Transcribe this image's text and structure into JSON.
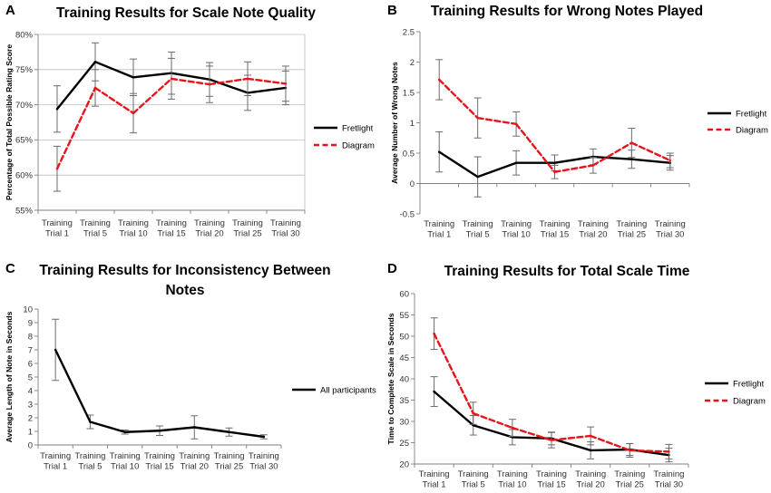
{
  "chart_data": [
    {
      "id": "A",
      "panel_label": "A",
      "type": "line",
      "title": "Training Results for Scale Note Quality",
      "title_lines": [
        "Training Results for Scale Note Quality"
      ],
      "ylabel": "Percentage of Total Possible Rating Score",
      "xlabel": "",
      "categories": [
        [
          "Training",
          "Trial 1"
        ],
        [
          "Training",
          "Trial 5"
        ],
        [
          "Training",
          "Trial 10"
        ],
        [
          "Training",
          "Trial 15"
        ],
        [
          "Training",
          "Trial 20"
        ],
        [
          "Training",
          "Trial 25"
        ],
        [
          "Training",
          "Trial 30"
        ]
      ],
      "ylim": [
        55,
        80
      ],
      "yticks": [
        55,
        60,
        65,
        70,
        75,
        80
      ],
      "ytick_labels": [
        "55%",
        "60%",
        "65%",
        "70%",
        "75%",
        "80%"
      ],
      "gridlines": true,
      "series": [
        {
          "name": "Fretlight",
          "color": "#000000",
          "dash": false,
          "values": [
            69.4,
            76.1,
            73.9,
            74.5,
            73.6,
            71.7,
            72.4
          ],
          "errors": [
            3.3,
            2.7,
            2.6,
            3.0,
            2.4,
            2.5,
            2.4
          ]
        },
        {
          "name": "Diagram",
          "color": "#e8141b",
          "dash": true,
          "values": [
            60.9,
            72.4,
            68.8,
            73.7,
            72.9,
            73.7,
            73.0
          ],
          "errors": [
            3.2,
            2.6,
            2.8,
            2.9,
            2.6,
            2.4,
            2.5
          ]
        }
      ],
      "legend": {
        "position": "right",
        "entries": [
          "Fretlight",
          "Diagram"
        ]
      }
    },
    {
      "id": "B",
      "panel_label": "B",
      "type": "line",
      "title": "Training Results for Wrong Notes Played",
      "title_lines": [
        "Training Results for Wrong Notes Played"
      ],
      "ylabel": "Average Number of Wrong Notes",
      "xlabel": "",
      "categories": [
        [
          "Training",
          "Trial 1"
        ],
        [
          "Training",
          "Trial 5"
        ],
        [
          "Training",
          "Trial 10"
        ],
        [
          "Training",
          "Trial 15"
        ],
        [
          "Training",
          "Trial 20"
        ],
        [
          "Training",
          "Trial 25"
        ],
        [
          "Training",
          "Trial 30"
        ]
      ],
      "ylim": [
        -0.5,
        2.5
      ],
      "yticks": [
        -0.5,
        0,
        0.5,
        1,
        1.5,
        2,
        2.5
      ],
      "ytick_labels": [
        "-0.5",
        "0",
        "0.5",
        "1",
        "1.5",
        "2",
        "2.5"
      ],
      "gridlines": false,
      "series": [
        {
          "name": "Fretlight",
          "color": "#000000",
          "dash": false,
          "values": [
            0.52,
            0.11,
            0.34,
            0.34,
            0.44,
            0.4,
            0.34
          ],
          "errors": [
            0.33,
            0.33,
            0.2,
            0.13,
            0.13,
            0.15,
            0.12
          ]
        },
        {
          "name": "Diagram",
          "color": "#e8141b",
          "dash": true,
          "values": [
            1.71,
            1.08,
            0.98,
            0.19,
            0.3,
            0.67,
            0.38
          ],
          "errors": [
            0.33,
            0.33,
            0.2,
            0.11,
            0.13,
            0.24,
            0.12
          ]
        }
      ],
      "legend": {
        "position": "right",
        "entries": [
          "Fretlight",
          "Diagram"
        ]
      }
    },
    {
      "id": "C",
      "panel_label": "C",
      "type": "line",
      "title": "Training Results for Inconsistency Between Notes",
      "title_lines": [
        "Training Results for Inconsistency Between",
        "Notes"
      ],
      "ylabel": "Average Length of Note in Seconds",
      "xlabel": "",
      "categories": [
        [
          "Training",
          "Trial 1"
        ],
        [
          "Training",
          "Trial 5"
        ],
        [
          "Training",
          "Trial 10"
        ],
        [
          "Training",
          "Trial 15"
        ],
        [
          "Training",
          "Trial 20"
        ],
        [
          "Training",
          "Trial 25"
        ],
        [
          "Training",
          "Trial 30"
        ]
      ],
      "ylim": [
        0,
        10
      ],
      "yticks": [
        0,
        1,
        2,
        3,
        4,
        5,
        6,
        7,
        8,
        9,
        10
      ],
      "ytick_labels": [
        "0",
        "1",
        "2",
        "3",
        "4",
        "5",
        "6",
        "7",
        "8",
        "9",
        "10"
      ],
      "gridlines": false,
      "series": [
        {
          "name": "All participants",
          "color": "#000000",
          "dash": false,
          "values": [
            7.0,
            1.7,
            0.95,
            1.05,
            1.3,
            0.95,
            0.6
          ],
          "errors": [
            2.25,
            0.5,
            0.15,
            0.35,
            0.85,
            0.3,
            0.15
          ]
        }
      ],
      "legend": {
        "position": "right",
        "entries": [
          "All participants"
        ]
      }
    },
    {
      "id": "D",
      "panel_label": "D",
      "type": "line",
      "title": "Training Results for Total Scale Time",
      "title_lines": [
        "Training Results for Total Scale Time"
      ],
      "ylabel": "Time to Complete Scale in Seconds",
      "xlabel": "",
      "categories": [
        [
          "Training",
          "Trial 1"
        ],
        [
          "Training",
          "Trial 5"
        ],
        [
          "Training",
          "Trial 10"
        ],
        [
          "Training",
          "Trial 15"
        ],
        [
          "Training",
          "Trial 20"
        ],
        [
          "Training",
          "Trial 25"
        ],
        [
          "Training",
          "Trial 30"
        ]
      ],
      "ylim": [
        20,
        60
      ],
      "yticks": [
        20,
        25,
        30,
        35,
        40,
        45,
        50,
        55,
        60
      ],
      "ytick_labels": [
        "20",
        "25",
        "30",
        "35",
        "40",
        "45",
        "50",
        "55",
        "60"
      ],
      "gridlines": false,
      "series": [
        {
          "name": "Fretlight",
          "color": "#000000",
          "dash": false,
          "values": [
            37.0,
            29.1,
            26.3,
            26.0,
            23.2,
            23.4,
            22.1
          ],
          "errors": [
            3.5,
            2.3,
            1.8,
            1.5,
            2.0,
            1.4,
            1.6
          ]
        },
        {
          "name": "Diagram",
          "color": "#e8141b",
          "dash": true,
          "values": [
            50.6,
            31.9,
            28.5,
            25.6,
            26.6,
            23.2,
            22.9
          ],
          "errors": [
            3.7,
            2.6,
            2.0,
            1.8,
            2.1,
            1.6,
            1.7
          ]
        }
      ],
      "legend": {
        "position": "right",
        "entries": [
          "Fretlight",
          "Diagram"
        ]
      }
    }
  ]
}
